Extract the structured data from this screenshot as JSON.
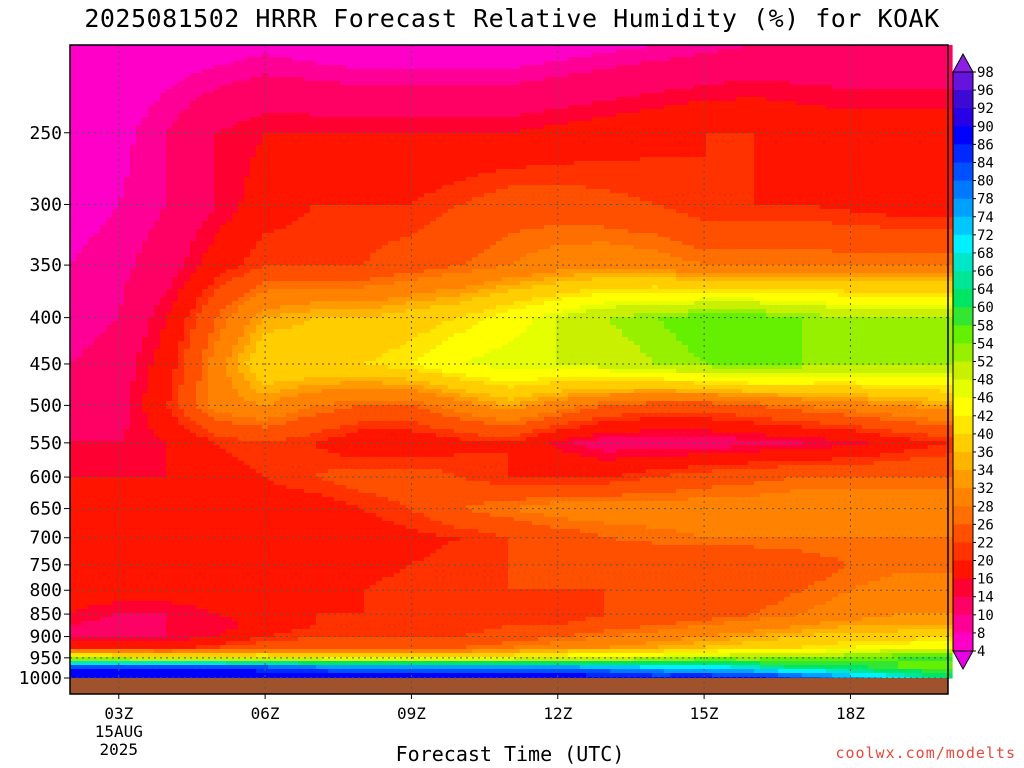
{
  "title": "2025081502 HRRR Forecast Relative Humidity (%) for KOAK",
  "credit": "coolwx.com/modelts",
  "chart_data": {
    "type": "heatmap",
    "title": "2025081502 HRRR Forecast Relative Humidity (%) for KOAK",
    "xlabel": "Forecast Time (UTC)",
    "ylabel": "",
    "x_range_hours_utc": [
      2,
      20
    ],
    "x_ticks": [
      {
        "hour": 3,
        "label": "03Z",
        "sublabels": [
          "15AUG",
          "2025"
        ]
      },
      {
        "hour": 6,
        "label": "06Z"
      },
      {
        "hour": 9,
        "label": "09Z"
      },
      {
        "hour": 12,
        "label": "12Z"
      },
      {
        "hour": 15,
        "label": "15Z"
      },
      {
        "hour": 18,
        "label": "18Z"
      }
    ],
    "y_axis": {
      "units": "hPa",
      "scale": "log",
      "inverted": true,
      "range": [
        1000,
        200
      ]
    },
    "y_ticks": [
      250,
      300,
      350,
      400,
      450,
      500,
      550,
      600,
      650,
      700,
      750,
      800,
      850,
      900,
      950,
      1000
    ],
    "grid": true,
    "colorbar": {
      "placement": "right",
      "labels": [
        98,
        96,
        92,
        90,
        86,
        84,
        80,
        78,
        74,
        72,
        68,
        66,
        64,
        60,
        58,
        54,
        52,
        48,
        46,
        42,
        40,
        36,
        34,
        32,
        28,
        26,
        22,
        20,
        16,
        14,
        10,
        8,
        4
      ],
      "colors": [
        "#8c1ee6",
        "#6414dc",
        "#3c0ad2",
        "#2800e6",
        "#0000ff",
        "#0028ff",
        "#0050ff",
        "#0078ff",
        "#00a0ff",
        "#00c8ff",
        "#00f0ff",
        "#00e6c8",
        "#00e696",
        "#00e664",
        "#32e632",
        "#64f000",
        "#96f000",
        "#c8f000",
        "#e6ff00",
        "#ffff00",
        "#ffe600",
        "#ffcd00",
        "#ffb400",
        "#ff9b00",
        "#ff8200",
        "#ff6e00",
        "#ff5000",
        "#ff3200",
        "#ff1400",
        "#ff0032",
        "#ff0064",
        "#ff0096",
        "#ff00c8",
        "#e600e6"
      ]
    },
    "hours": [
      2,
      3,
      4,
      5,
      6,
      7,
      8,
      9,
      10,
      11,
      12,
      13,
      14,
      15,
      16,
      17,
      18,
      19,
      20
    ],
    "levels_hpa": [
      1000,
      975,
      950,
      925,
      900,
      875,
      850,
      800,
      750,
      700,
      650,
      600,
      550,
      500,
      450,
      400,
      350,
      300,
      250,
      200
    ],
    "values": [
      [
        90,
        90,
        90,
        90,
        90,
        90,
        90,
        90,
        90,
        90,
        90,
        90,
        88,
        90,
        88,
        84,
        76,
        70,
        64
      ],
      [
        86,
        86,
        86,
        86,
        84,
        82,
        80,
        80,
        80,
        78,
        78,
        76,
        74,
        72,
        68,
        64,
        62,
        58,
        56
      ],
      [
        48,
        48,
        46,
        46,
        46,
        44,
        42,
        42,
        42,
        44,
        46,
        48,
        50,
        52,
        52,
        54,
        56,
        58,
        60
      ],
      [
        20,
        18,
        18,
        22,
        24,
        24,
        26,
        26,
        26,
        28,
        30,
        32,
        34,
        36,
        38,
        40,
        42,
        44,
        46
      ],
      [
        14,
        13,
        14,
        16,
        20,
        22,
        22,
        22,
        22,
        24,
        26,
        28,
        30,
        32,
        34,
        36,
        38,
        38,
        40
      ],
      [
        14,
        12,
        14,
        14,
        18,
        20,
        20,
        20,
        20,
        22,
        22,
        24,
        26,
        28,
        30,
        32,
        34,
        34,
        34
      ],
      [
        16,
        14,
        14,
        16,
        18,
        20,
        20,
        20,
        20,
        20,
        20,
        22,
        22,
        24,
        26,
        28,
        30,
        32,
        32
      ],
      [
        18,
        18,
        18,
        18,
        18,
        19,
        20,
        21,
        22,
        22,
        22,
        22,
        22,
        22,
        24,
        26,
        28,
        30,
        30
      ],
      [
        18,
        18,
        18,
        18,
        18,
        18,
        19,
        20,
        21,
        22,
        22,
        22,
        22,
        22,
        22,
        24,
        26,
        27,
        27
      ],
      [
        18,
        18,
        18,
        18,
        18,
        18,
        18,
        19,
        20,
        22,
        24,
        26,
        27,
        28,
        28,
        28,
        28,
        28,
        28
      ],
      [
        18,
        18,
        18,
        18,
        18,
        18,
        20,
        22,
        26,
        28,
        30,
        30,
        30,
        30,
        30,
        31,
        32,
        32,
        32
      ],
      [
        16,
        16,
        16,
        18,
        20,
        22,
        24,
        24,
        22,
        20,
        20,
        20,
        22,
        24,
        25,
        26,
        26,
        26,
        26
      ],
      [
        14,
        14,
        16,
        20,
        22,
        20,
        17,
        17,
        19,
        20,
        15,
        12,
        12,
        12,
        13,
        14,
        15,
        18,
        20
      ],
      [
        10,
        12,
        20,
        30,
        32,
        28,
        26,
        26,
        30,
        34,
        30,
        26,
        24,
        24,
        26,
        28,
        30,
        32,
        34
      ],
      [
        10,
        12,
        18,
        30,
        40,
        40,
        40,
        42,
        46,
        48,
        48,
        50,
        52,
        54,
        56,
        54,
        52,
        52,
        52
      ],
      [
        8,
        10,
        16,
        26,
        34,
        36,
        36,
        38,
        40,
        44,
        48,
        52,
        54,
        56,
        56,
        54,
        52,
        52,
        52
      ],
      [
        8,
        9,
        12,
        18,
        22,
        22,
        22,
        24,
        26,
        28,
        30,
        31,
        30,
        28,
        28,
        28,
        28,
        28,
        28
      ],
      [
        7,
        8,
        10,
        14,
        18,
        20,
        20,
        20,
        22,
        24,
        24,
        23,
        22,
        20,
        20,
        20,
        19,
        18,
        18
      ],
      [
        6,
        7,
        10,
        14,
        16,
        16,
        16,
        16,
        16,
        16,
        17,
        18,
        19,
        20,
        20,
        19,
        18,
        18,
        18
      ],
      [
        5,
        5,
        6,
        6,
        7,
        6,
        5,
        5,
        5,
        5,
        6,
        7,
        8,
        9,
        10,
        10,
        10,
        10,
        10
      ]
    ]
  }
}
